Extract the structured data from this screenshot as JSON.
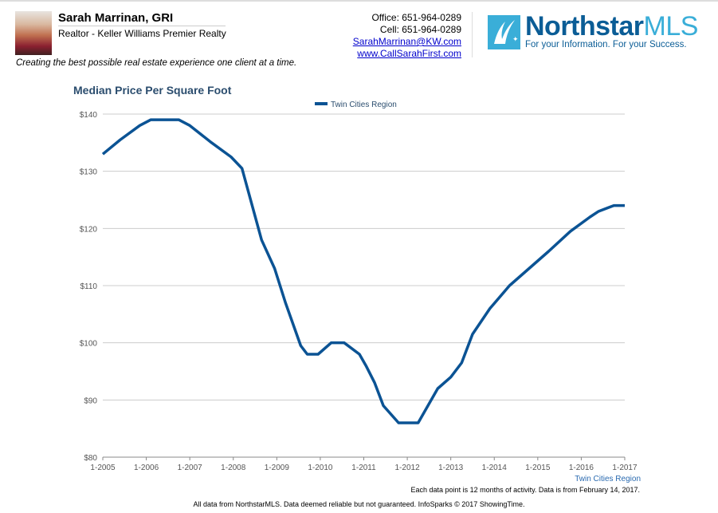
{
  "agent": {
    "name": "Sarah Marrinan, GRI",
    "title": "Realtor - Keller Williams Premier Realty",
    "tagline": "Creating the best possible real estate experience one client at a time.",
    "office": "Office: 651-964-0289",
    "cell": "Cell: 651-964-0289",
    "email": "SarahMarrinan@KW.com",
    "website": "www.CallSarahFirst.com"
  },
  "logo": {
    "brand": "Northstar",
    "brand_suffix": "MLS",
    "slogan": "For your Information. For your Success."
  },
  "colors": {
    "line": "#0b5394",
    "title": "#2b4d6e",
    "logo": "#0b5d96",
    "logo_light": "#3aaed8"
  },
  "chart_data": {
    "type": "line",
    "title": "Median Price Per Square Foot",
    "xlabel": "",
    "ylabel": "",
    "ylim": [
      80,
      140
    ],
    "xlim": [
      2005,
      2017
    ],
    "y_ticks": [
      "$80",
      "$90",
      "$100",
      "$110",
      "$120",
      "$130",
      "$140"
    ],
    "x_ticks": [
      "1-2005",
      "1-2006",
      "1-2007",
      "1-2008",
      "1-2009",
      "1-2010",
      "1-2011",
      "1-2012",
      "1-2013",
      "1-2014",
      "1-2015",
      "1-2016",
      "1-2017"
    ],
    "grid": true,
    "legend": "top-center",
    "series": [
      {
        "name": "Twin Cities Region",
        "points": [
          [
            2005.0,
            133
          ],
          [
            2005.4,
            135.5
          ],
          [
            2005.85,
            138
          ],
          [
            2006.1,
            139
          ],
          [
            2006.75,
            139
          ],
          [
            2007.0,
            138
          ],
          [
            2007.5,
            135
          ],
          [
            2007.95,
            132.5
          ],
          [
            2008.2,
            130.5
          ],
          [
            2008.65,
            118
          ],
          [
            2008.95,
            113
          ],
          [
            2009.2,
            107
          ],
          [
            2009.55,
            99.5
          ],
          [
            2009.7,
            98
          ],
          [
            2009.95,
            98
          ],
          [
            2010.25,
            100
          ],
          [
            2010.55,
            100
          ],
          [
            2010.9,
            98
          ],
          [
            2011.05,
            96
          ],
          [
            2011.25,
            93
          ],
          [
            2011.45,
            89
          ],
          [
            2011.8,
            86
          ],
          [
            2012.25,
            86
          ],
          [
            2012.7,
            92
          ],
          [
            2013.0,
            94
          ],
          [
            2013.25,
            96.5
          ],
          [
            2013.5,
            101.5
          ],
          [
            2013.9,
            106
          ],
          [
            2014.35,
            110
          ],
          [
            2014.8,
            113
          ],
          [
            2015.25,
            116
          ],
          [
            2015.75,
            119.5
          ],
          [
            2016.2,
            122
          ],
          [
            2016.4,
            123
          ],
          [
            2016.75,
            124
          ],
          [
            2017.0,
            124
          ]
        ]
      }
    ],
    "axis_series_label": "Twin Cities Region",
    "note": "Each data point is 12 months of activity. Data is from February 14, 2017."
  },
  "footer": "All data from NorthstarMLS. Data deemed reliable but not guaranteed. InfoSparks © 2017 ShowingTime."
}
